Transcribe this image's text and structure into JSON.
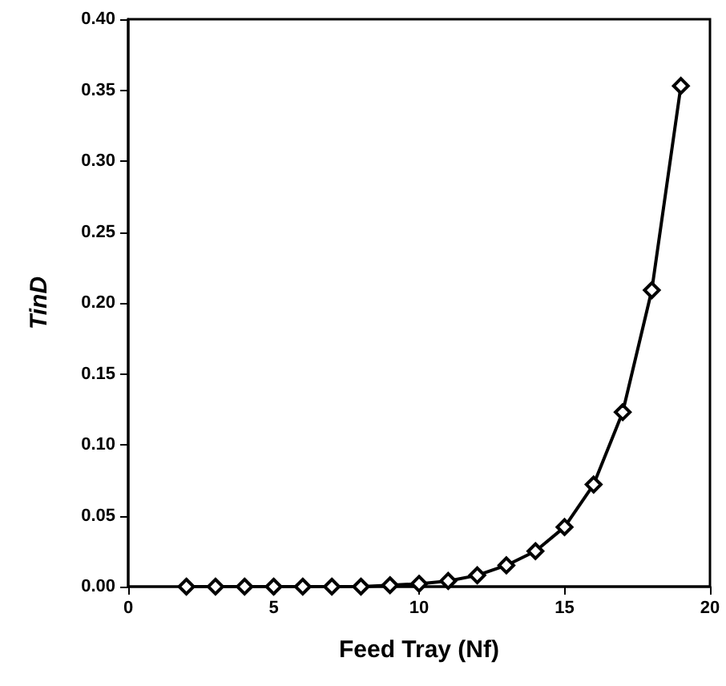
{
  "chart_data": {
    "type": "line",
    "xlabel": "Feed Tray (Nf)",
    "ylabel": "TinD",
    "x": [
      2,
      3,
      4,
      5,
      6,
      7,
      8,
      9,
      10,
      11,
      12,
      13,
      14,
      15,
      16,
      17,
      18,
      19
    ],
    "series": [
      {
        "color": "#000000",
        "values": [
          0.0,
          0.0,
          0.0,
          0.0,
          0.0,
          0.0,
          0.0,
          0.001,
          0.002,
          0.004,
          0.008,
          0.015,
          0.025,
          0.042,
          0.072,
          0.123,
          0.209,
          0.353
        ]
      }
    ],
    "xlim": [
      0,
      20
    ],
    "xticks": [
      0,
      5,
      10,
      15,
      20
    ],
    "ylim": [
      0,
      0.4
    ],
    "yticks": [
      {
        "value": 0,
        "label": "0.00"
      },
      {
        "value": 0.05,
        "label": "0.05"
      },
      {
        "value": 0.1,
        "label": "0.10"
      },
      {
        "value": 0.15,
        "label": "0.15"
      },
      {
        "value": 0.2,
        "label": "0.20"
      },
      {
        "value": 0.25,
        "label": "0.25"
      },
      {
        "value": 0.3,
        "label": "0.30"
      },
      {
        "value": 0.35,
        "label": "0.35"
      },
      {
        "value": 0.4,
        "label": "0.40"
      }
    ],
    "grid": false,
    "marker": "diamond",
    "line_style": "solid"
  }
}
